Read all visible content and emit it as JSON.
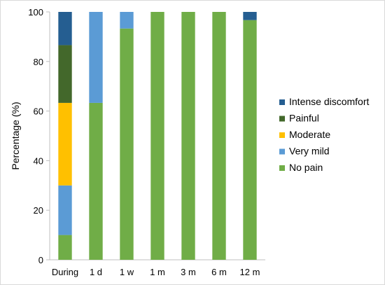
{
  "chart_data": {
    "type": "bar",
    "stacked": true,
    "categories": [
      "During",
      "1 d",
      "1 w",
      "1 m",
      "3 m",
      "6 m",
      "12 m"
    ],
    "series": [
      {
        "name": "No pain",
        "color": "#70ad47",
        "values": [
          10,
          63.3,
          93.3,
          100,
          100,
          100,
          96.7
        ]
      },
      {
        "name": "Very mild",
        "color": "#5b9bd5",
        "values": [
          20,
          36.7,
          6.7,
          0,
          0,
          0,
          0
        ]
      },
      {
        "name": "Moderate",
        "color": "#ffc000",
        "values": [
          33.3,
          0,
          0,
          0,
          0,
          0,
          0
        ]
      },
      {
        "name": "Painful",
        "color": "#43682b",
        "values": [
          23.3,
          0,
          0,
          0,
          0,
          0,
          0
        ]
      },
      {
        "name": "Intense discomfort",
        "color": "#255e91",
        "values": [
          13.4,
          0,
          0,
          0,
          0,
          0,
          3.3
        ]
      }
    ],
    "legend_order": [
      "Intense discomfort",
      "Painful",
      "Moderate",
      "Very mild",
      "No pain"
    ],
    "ylabel": "Percentage (%)",
    "xlabel": "",
    "ylim": [
      0,
      100
    ],
    "yticks": [
      0,
      20,
      40,
      60,
      80,
      100
    ],
    "grid": false,
    "legend_position": "right"
  }
}
